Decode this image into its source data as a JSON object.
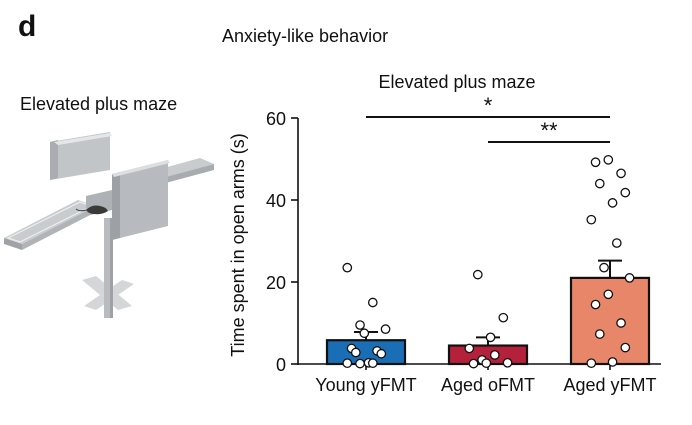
{
  "panel_letter": "d",
  "heading": "Anxiety-like behavior",
  "illustration_label": "Elevated plus maze",
  "chart_data": {
    "type": "bar",
    "title": "Elevated plus maze",
    "xlabel": "",
    "ylabel": "Time spent in open arms (s)",
    "ylim": [
      0,
      60
    ],
    "yticks": [
      0,
      20,
      40,
      60
    ],
    "categories": [
      "Young yFMT",
      "Aged oFMT",
      "Aged yFMT"
    ],
    "values": [
      5.8,
      4.5,
      21.0
    ],
    "errors": [
      2.0,
      2.0,
      4.2
    ],
    "colors": [
      "#1a6eb5",
      "#b5203a",
      "#e8866a"
    ],
    "points": [
      [
        23.5,
        15.0,
        9.5,
        8.5,
        7.5,
        3.8,
        3.2,
        2.8,
        2.5,
        0.3,
        0.2,
        0.2,
        0.1
      ],
      [
        21.8,
        11.3,
        6.5,
        3.8,
        2.2,
        1.0,
        0.3,
        0.2,
        0.1
      ],
      [
        49.8,
        49.2,
        46.5,
        44.0,
        41.8,
        39.3,
        35.2,
        29.5,
        23.5,
        21.0,
        17.0,
        14.5,
        10.0,
        7.3,
        4.0,
        0.5,
        0.2
      ]
    ],
    "significance": [
      {
        "from": 0,
        "to": 2,
        "label": "*"
      },
      {
        "from": 1,
        "to": 2,
        "label": "**"
      }
    ]
  }
}
